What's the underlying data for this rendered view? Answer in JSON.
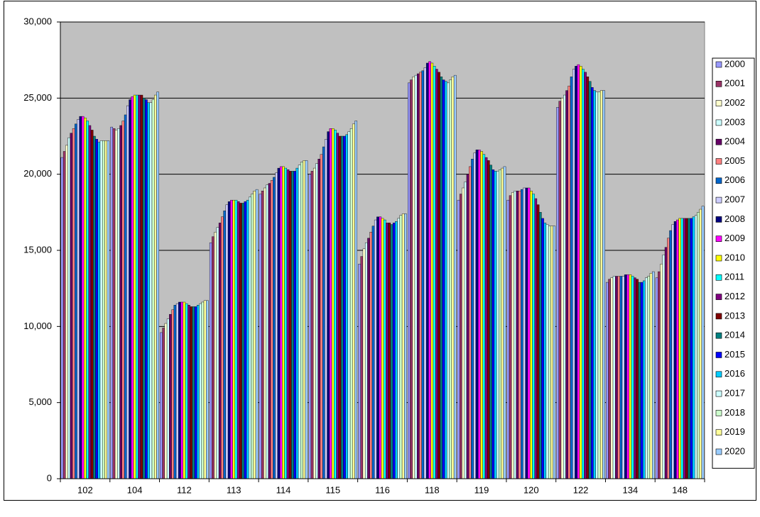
{
  "chart_data": {
    "type": "bar",
    "categories": [
      "102",
      "104",
      "112",
      "113",
      "114",
      "115",
      "116",
      "118",
      "119",
      "120",
      "122",
      "134",
      "148"
    ],
    "ylim": [
      0,
      30000
    ],
    "yticks": [
      {
        "value": 0,
        "label": "0"
      },
      {
        "value": 5000,
        "label": "5,000"
      },
      {
        "value": 10000,
        "label": "10,000"
      },
      {
        "value": 15000,
        "label": "15,000"
      },
      {
        "value": 20000,
        "label": "20,000"
      },
      {
        "value": 25000,
        "label": "25,000"
      },
      {
        "value": 30000,
        "label": "30,000"
      }
    ],
    "grid": true,
    "legend": "right",
    "background": "#c0c0c0",
    "series_matrix_by_category": [
      [
        21100,
        21500,
        21900,
        22400,
        22700,
        23000,
        23300,
        23600,
        23800,
        23800,
        23700,
        23500,
        23200,
        22900,
        22500,
        22300,
        22100,
        22200,
        22200,
        22200,
        22200
      ],
      [
        23100,
        23000,
        22900,
        23000,
        23200,
        23500,
        23900,
        24500,
        24900,
        25100,
        25200,
        25200,
        25200,
        25200,
        25000,
        24900,
        24700,
        24700,
        24900,
        25200,
        25400
      ],
      [
        9600,
        9900,
        10200,
        10500,
        10800,
        11100,
        11400,
        11500,
        11600,
        11600,
        11600,
        11500,
        11400,
        11300,
        11300,
        11300,
        11400,
        11500,
        11600,
        11700,
        11700
      ],
      [
        15500,
        15900,
        16200,
        16500,
        16800,
        17200,
        17600,
        18000,
        18200,
        18300,
        18300,
        18300,
        18200,
        18100,
        18100,
        18200,
        18300,
        18500,
        18700,
        18900,
        19000
      ],
      [
        18700,
        18900,
        19100,
        19300,
        19400,
        19600,
        19800,
        20100,
        20400,
        20500,
        20500,
        20400,
        20300,
        20200,
        20200,
        20200,
        20400,
        20600,
        20800,
        20900,
        20900
      ],
      [
        20000,
        20200,
        20400,
        20700,
        21000,
        21300,
        21800,
        22300,
        22800,
        23000,
        23000,
        22900,
        22700,
        22500,
        22500,
        22500,
        22600,
        22800,
        23000,
        23300,
        23500
      ],
      [
        14100,
        14600,
        15100,
        15500,
        15800,
        16200,
        16600,
        17000,
        17200,
        17200,
        17100,
        17000,
        16800,
        16800,
        16700,
        16800,
        16900,
        17100,
        17300,
        17400,
        17400
      ],
      [
        26000,
        26200,
        26400,
        26500,
        26600,
        26700,
        26800,
        27000,
        27300,
        27400,
        27300,
        27100,
        26900,
        26700,
        26400,
        26200,
        26100,
        26000,
        26200,
        26400,
        26500
      ],
      [
        18300,
        18700,
        19100,
        19500,
        20000,
        20500,
        21000,
        21400,
        21600,
        21600,
        21500,
        21300,
        21100,
        20900,
        20600,
        20300,
        20200,
        20200,
        20300,
        20400,
        20500
      ],
      [
        18300,
        18600,
        18800,
        18900,
        18900,
        18900,
        19000,
        19100,
        19100,
        19100,
        18900,
        18700,
        18400,
        18000,
        17500,
        17100,
        16800,
        16700,
        16600,
        16600,
        16600
      ],
      [
        24400,
        24800,
        25000,
        25200,
        25500,
        25800,
        26400,
        26900,
        27100,
        27200,
        27100,
        26900,
        26700,
        26400,
        26100,
        25700,
        25500,
        25400,
        25400,
        25500,
        25500
      ],
      [
        12900,
        13100,
        13200,
        13300,
        13300,
        13300,
        13300,
        13300,
        13400,
        13400,
        13400,
        13300,
        13200,
        13100,
        12900,
        12900,
        13000,
        13200,
        13300,
        13500,
        13600
      ],
      [
        13200,
        13600,
        14100,
        14700,
        15200,
        15800,
        16300,
        16700,
        16900,
        17000,
        17100,
        17100,
        17100,
        17100,
        17100,
        17100,
        17200,
        17300,
        17500,
        17700,
        17900
      ]
    ],
    "series": [
      {
        "name": "2000",
        "color": "#9999ff"
      },
      {
        "name": "2001",
        "color": "#993366"
      },
      {
        "name": "2002",
        "color": "#ffffcc"
      },
      {
        "name": "2003",
        "color": "#ccffff"
      },
      {
        "name": "2004",
        "color": "#660066"
      },
      {
        "name": "2005",
        "color": "#ff8080"
      },
      {
        "name": "2006",
        "color": "#0066cc"
      },
      {
        "name": "2007",
        "color": "#ccccff"
      },
      {
        "name": "2008",
        "color": "#000080"
      },
      {
        "name": "2009",
        "color": "#ff00ff"
      },
      {
        "name": "2010",
        "color": "#ffff00"
      },
      {
        "name": "2011",
        "color": "#00ffff"
      },
      {
        "name": "2012",
        "color": "#800080"
      },
      {
        "name": "2013",
        "color": "#800000"
      },
      {
        "name": "2014",
        "color": "#008080"
      },
      {
        "name": "2015",
        "color": "#0000ff"
      },
      {
        "name": "2016",
        "color": "#00ccff"
      },
      {
        "name": "2017",
        "color": "#ccffff"
      },
      {
        "name": "2018",
        "color": "#ccffcc"
      },
      {
        "name": "2019",
        "color": "#ffff99"
      },
      {
        "name": "2020",
        "color": "#99ccff"
      }
    ]
  }
}
